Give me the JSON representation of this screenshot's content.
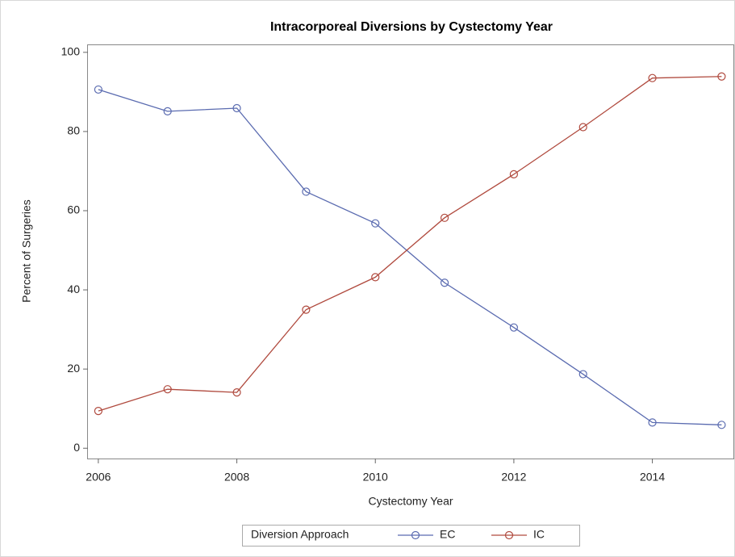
{
  "chart_data": {
    "type": "line",
    "title": "Intracorporeal Diversions by Cystectomy Year",
    "x_label": "Cystectomy Year",
    "y_label": "Percent of Surgeries",
    "x": [
      2006,
      2007,
      2008,
      2009,
      2010,
      2011,
      2012,
      2013,
      2014,
      2015
    ],
    "series": [
      {
        "name": "EC",
        "color": "#5a6bb0",
        "values": [
          90.6,
          85.1,
          85.9,
          64.8,
          56.8,
          41.8,
          30.5,
          18.7,
          6.5,
          5.9
        ]
      },
      {
        "name": "IC",
        "color": "#b04a3e",
        "values": [
          9.4,
          14.9,
          14.1,
          35.0,
          43.2,
          58.2,
          69.2,
          81.1,
          93.5,
          93.9
        ]
      }
    ],
    "xlim": [
      2005.85,
      2015.17
    ],
    "xticks": [
      2006,
      2008,
      2010,
      2012,
      2014
    ],
    "ylim": [
      -2.6,
      101.8
    ],
    "yticks": [
      0,
      20,
      40,
      60,
      80,
      100
    ],
    "legend_title": "Diversion Approach",
    "legend_position": "bottom"
  }
}
